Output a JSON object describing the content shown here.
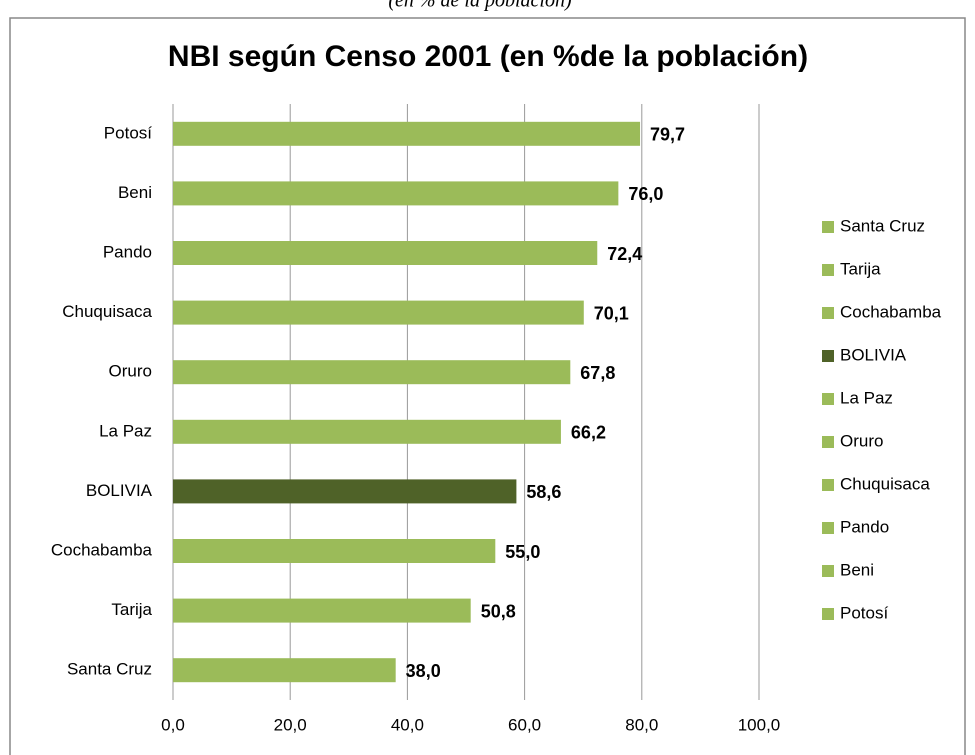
{
  "chart_data": {
    "type": "bar",
    "orientation": "horizontal",
    "subtitle": "(en % de la población)",
    "title": "NBI según Censo 2001 (en %de la población)",
    "categories": [
      "Potosí",
      "Beni",
      "Pando",
      "Chuquisaca",
      "Oruro",
      "La Paz",
      "BOLIVIA",
      "Cochabamba",
      "Tarija",
      "Santa Cruz"
    ],
    "values": [
      79.7,
      76.0,
      72.4,
      70.1,
      67.8,
      66.2,
      58.6,
      55.0,
      50.8,
      38.0
    ],
    "value_labels": [
      "79,7",
      "76,0",
      "72,4",
      "70,1",
      "67,8",
      "66,2",
      "58,6",
      "55,0",
      "50,8",
      "38,0"
    ],
    "colors": [
      "#9bbb59",
      "#9bbb59",
      "#9bbb59",
      "#9bbb59",
      "#9bbb59",
      "#9bbb59",
      "#4f6228",
      "#9bbb59",
      "#9bbb59",
      "#9bbb59"
    ],
    "xlim": [
      0,
      100
    ],
    "xticks": [
      {
        "value": 0,
        "label": "0,0"
      },
      {
        "value": 20,
        "label": "20,0"
      },
      {
        "value": 40,
        "label": "40,0"
      },
      {
        "value": 60,
        "label": "60,0"
      },
      {
        "value": 80,
        "label": "80,0"
      },
      {
        "value": 100,
        "label": "100,0"
      }
    ],
    "grid": true,
    "legend": "right"
  }
}
